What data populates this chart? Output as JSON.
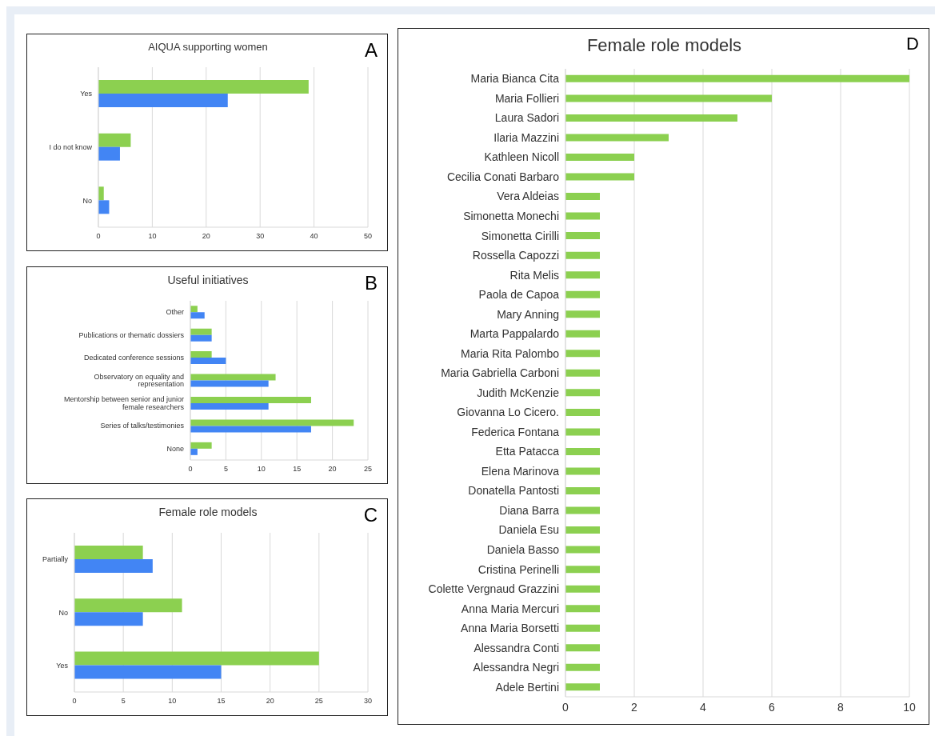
{
  "chart_data": [
    {
      "type": "bar",
      "orientation": "horizontal",
      "title": "AIQUA supporting women",
      "annotations": [
        "A"
      ],
      "categories": [
        "Yes",
        "I do not know",
        "No"
      ],
      "series": [
        {
          "color": "#8cd050",
          "values": [
            39,
            6,
            1
          ]
        },
        {
          "color": "#4285f4",
          "values": [
            24,
            4,
            2
          ]
        }
      ],
      "xlim": [
        0,
        50
      ],
      "xticks": [
        0,
        10,
        20,
        30,
        40,
        50
      ],
      "grid": "x"
    },
    {
      "type": "bar",
      "orientation": "horizontal",
      "title": "Useful initiatives",
      "annotations": [
        "B"
      ],
      "categories": [
        "Other",
        "Publications or thematic dossiers",
        "Dedicated conference sessions",
        "Observatory on equality and representation",
        "Mentorship between senior and junior female researchers",
        "Series of talks/testimonies",
        "None"
      ],
      "series": [
        {
          "color": "#8cd050",
          "values": [
            1,
            3,
            3,
            12,
            17,
            23,
            3
          ]
        },
        {
          "color": "#4285f4",
          "values": [
            2,
            3,
            5,
            11,
            11,
            17,
            1
          ]
        }
      ],
      "xlim": [
        0,
        25
      ],
      "xticks": [
        0,
        5,
        10,
        15,
        20,
        25
      ],
      "grid": "x"
    },
    {
      "type": "bar",
      "orientation": "horizontal",
      "title": "Female role models",
      "annotations": [
        "C"
      ],
      "categories": [
        "Partially",
        "No",
        "Yes"
      ],
      "series": [
        {
          "color": "#8cd050",
          "values": [
            7,
            11,
            25
          ]
        },
        {
          "color": "#4285f4",
          "values": [
            8,
            7,
            15
          ]
        }
      ],
      "xlim": [
        0,
        30
      ],
      "xticks": [
        0,
        5,
        10,
        15,
        20,
        25,
        30
      ],
      "grid": "x"
    },
    {
      "type": "bar",
      "orientation": "horizontal",
      "title": "Female role models",
      "annotations": [
        "D"
      ],
      "categories": [
        "Maria Bianca Cita",
        "Maria Follieri",
        "Laura Sadori",
        "Ilaria Mazzini",
        "Kathleen Nicoll",
        "Cecilia Conati Barbaro",
        "Vera Aldeias",
        "Simonetta Monechi",
        "Simonetta Cirilli",
        "Rossella Capozzi",
        "Rita Melis",
        "Paola de Capoa",
        "Mary Anning",
        "Marta Pappalardo",
        "Maria Rita Palombo",
        "Maria Gabriella Carboni",
        "Judith McKenzie",
        "Giovanna Lo Cicero.",
        "Federica Fontana",
        "Etta Patacca",
        "Elena Marinova",
        "Donatella Pantosti",
        "Diana Barra",
        "Daniela Esu",
        "Daniela Basso",
        "Cristina Perinelli",
        "Colette Vergnaud Grazzini",
        "Anna Maria Mercuri",
        "Anna Maria Borsetti",
        "Alessandra Conti",
        "Alessandra Negri",
        "Adele Bertini"
      ],
      "series": [
        {
          "color": "#8cd050",
          "values": [
            10,
            6,
            5,
            3,
            2,
            2,
            1,
            1,
            1,
            1,
            1,
            1,
            1,
            1,
            1,
            1,
            1,
            1,
            1,
            1,
            1,
            1,
            1,
            1,
            1,
            1,
            1,
            1,
            1,
            1,
            1,
            1
          ]
        }
      ],
      "xlim": [
        0,
        10
      ],
      "xticks": [
        0,
        2,
        4,
        6,
        8,
        10
      ],
      "grid": "x"
    }
  ]
}
